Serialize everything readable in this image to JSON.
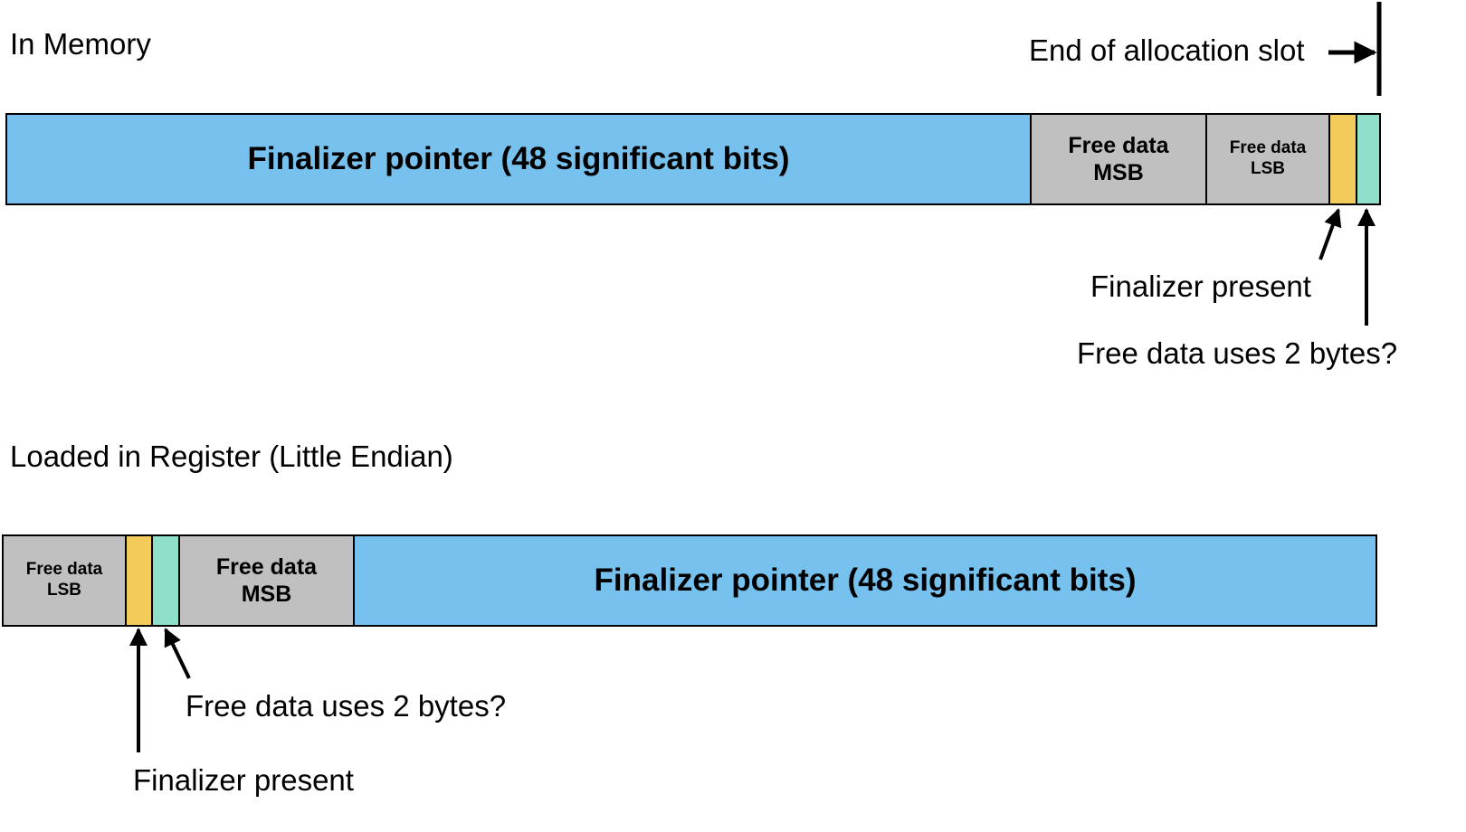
{
  "memory": {
    "title": "In Memory",
    "end_label": "End of allocation slot",
    "segments": {
      "pointer": "Finalizer pointer (48 significant bits)",
      "msb_line1": "Free data",
      "msb_line2": "MSB",
      "lsb_line1": "Free data",
      "lsb_line2": "LSB"
    },
    "finalizer_present_label": "Finalizer present",
    "free_data_bytes_label": "Free data uses 2 bytes?"
  },
  "register": {
    "title": "Loaded in Register (Little Endian)",
    "segments": {
      "lsb_line1": "Free data",
      "lsb_line2": "LSB",
      "msb_line1": "Free data",
      "msb_line2": "MSB",
      "pointer": "Finalizer pointer (48 significant bits)"
    },
    "free_data_bytes_label": "Free data uses 2 bytes?",
    "finalizer_present_label": "Finalizer present"
  },
  "colors": {
    "pointer": "#76C1EE",
    "free_data": "#C0C0C0",
    "finalizer_flag": "#F2CB5A",
    "bytes_flag": "#8EE0CA",
    "line": "#000000"
  }
}
